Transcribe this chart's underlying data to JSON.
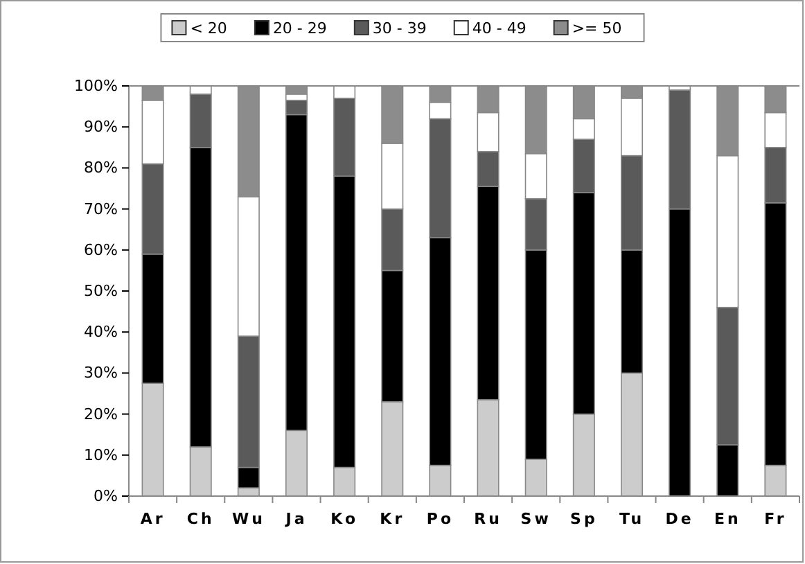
{
  "chart_data": {
    "type": "bar",
    "stacked": true,
    "categories": [
      "Ar",
      "Ch",
      "Wu",
      "Ja",
      "Ko",
      "Kr",
      "Po",
      "Ru",
      "Sw",
      "Sp",
      "Tu",
      "De",
      "En",
      "Fr"
    ],
    "series": [
      {
        "name": "< 20",
        "color": "#cccccc",
        "values": [
          27.5,
          12,
          2,
          16,
          7,
          23,
          7.5,
          23.5,
          9,
          20,
          30,
          0,
          0,
          7.5
        ]
      },
      {
        "name": "20 - 29",
        "color": "#000000",
        "values": [
          31.5,
          73,
          5,
          77,
          71,
          32,
          55.5,
          52,
          51,
          54,
          30,
          70,
          12.5,
          64
        ]
      },
      {
        "name": "30 - 39",
        "color": "#5a5a5a",
        "values": [
          22,
          13,
          32,
          3.5,
          19,
          15,
          29,
          8.5,
          12.5,
          13,
          23,
          29,
          33.5,
          13.5
        ]
      },
      {
        "name": "40 - 49",
        "color": "#ffffff",
        "values": [
          15.5,
          2,
          34,
          1.5,
          3,
          16,
          4,
          9.5,
          11,
          5,
          14,
          1,
          37,
          8.5
        ]
      },
      {
        "name": ">= 50",
        "color": "#8c8c8c",
        "values": [
          3.5,
          0,
          27,
          2,
          0,
          14,
          4,
          6.5,
          16.5,
          8,
          3,
          0,
          17,
          6.5
        ]
      }
    ],
    "ylim": [
      0,
      100
    ],
    "yticks": [
      {
        "value": 0,
        "label": "0%"
      },
      {
        "value": 10,
        "label": "10%"
      },
      {
        "value": 20,
        "label": "20%"
      },
      {
        "value": 30,
        "label": "30%"
      },
      {
        "value": 40,
        "label": "40%"
      },
      {
        "value": 50,
        "label": "50%"
      },
      {
        "value": 60,
        "label": "60%"
      },
      {
        "value": 70,
        "label": "70%"
      },
      {
        "value": 80,
        "label": "80%"
      },
      {
        "value": 90,
        "label": "90%"
      },
      {
        "value": 100,
        "label": "100%"
      }
    ],
    "legend": "top"
  }
}
